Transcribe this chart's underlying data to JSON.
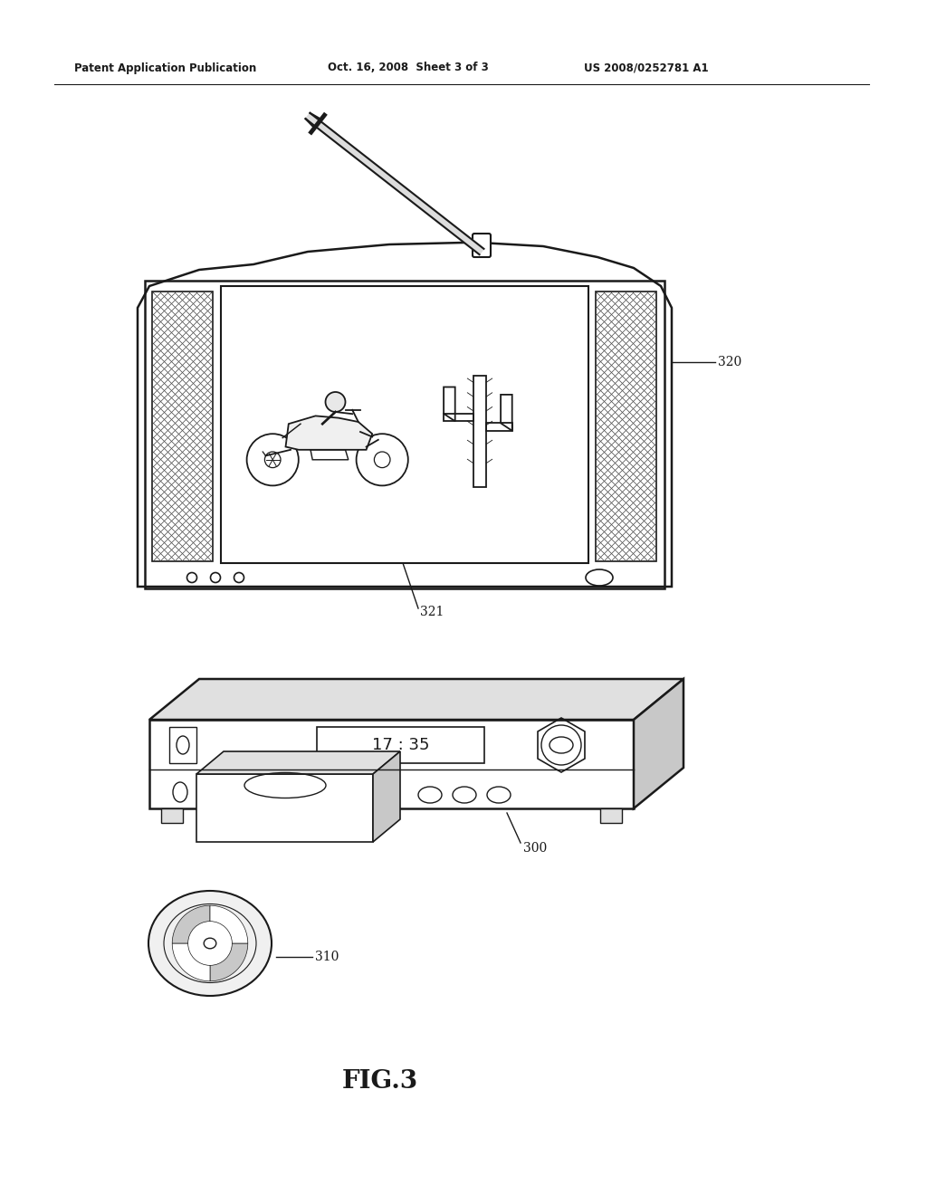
{
  "background_color": "#ffffff",
  "header_left": "Patent Application Publication",
  "header_mid": "Oct. 16, 2008  Sheet 3 of 3",
  "header_right": "US 2008/0252781 A1",
  "figure_label": "FIG.3",
  "label_320": "320",
  "label_321": "321",
  "label_300": "300",
  "label_310": "310",
  "time_display": "17 : 35"
}
